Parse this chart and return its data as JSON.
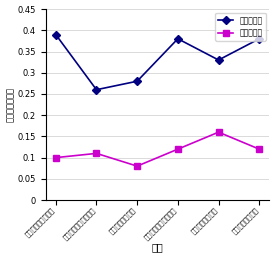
{
  "categories": [
    "鍵面ニッカルメッキ",
    "電着複ニッカルメッキ",
    "フッ素樹脂メッキ",
    "鉄コバルト合金メッキ",
    "硬質クロムメッキ",
    "鉄ニッカルメッキ"
  ],
  "static_friction": [
    0.39,
    0.26,
    0.28,
    0.38,
    0.33,
    0.38
  ],
  "dynamic_friction": [
    0.1,
    0.11,
    0.08,
    0.12,
    0.16,
    0.12
  ],
  "static_color": "#000080",
  "dynamic_color": "#CC00CC",
  "static_label": "静摩擦係数",
  "dynamic_label": "動摩擦係数",
  "ylabel": "静・動摩擦係数",
  "xlabel": "試料",
  "ylim": [
    0,
    0.45
  ],
  "yticks": [
    0,
    0.05,
    0.1,
    0.15,
    0.2,
    0.25,
    0.3,
    0.35,
    0.4,
    0.45
  ]
}
